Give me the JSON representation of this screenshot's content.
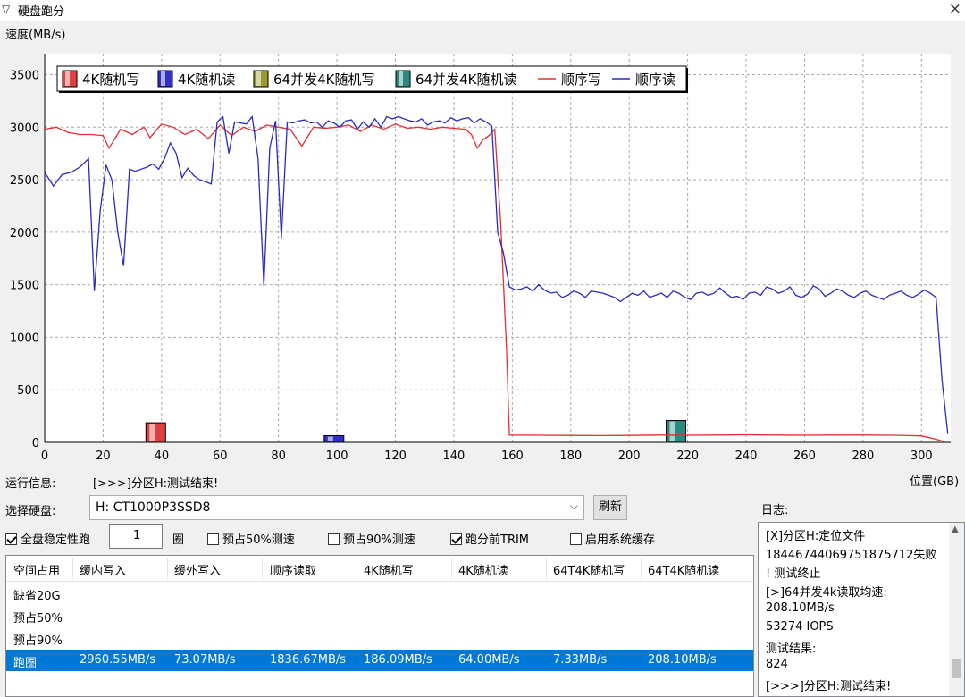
{
  "window": {
    "icon": "app-icon",
    "title": "硬盘跑分",
    "close": "×"
  },
  "chart_unit_label": "速度(MB/s)",
  "chart_data": {
    "type": "line",
    "xlabel": "位置(GB)",
    "ylabel": "速度(MB/s)",
    "xlim": [
      0,
      310
    ],
    "ylim": [
      0,
      3700
    ],
    "xticks": [
      0,
      20,
      40,
      60,
      80,
      100,
      120,
      140,
      160,
      180,
      200,
      220,
      240,
      260,
      280,
      300
    ],
    "yticks": [
      0,
      500,
      1000,
      1500,
      2000,
      2500,
      3000,
      3500
    ],
    "grid": true,
    "legend_position": "top",
    "legend": [
      {
        "name": "4K随机写",
        "kind": "bar",
        "color": "#e04040"
      },
      {
        "name": "4K随机读",
        "kind": "bar",
        "color": "#3030c8"
      },
      {
        "name": "64并发4K随机写",
        "kind": "bar",
        "color": "#9a9a30"
      },
      {
        "name": "64并发4K随机读",
        "kind": "bar",
        "color": "#2a8a80"
      },
      {
        "name": "顺序写",
        "kind": "line",
        "color": "#e03030"
      },
      {
        "name": "顺序读",
        "kind": "line",
        "color": "#2a2ac0"
      }
    ],
    "bars": [
      {
        "series": "4K随机写",
        "x": 38,
        "value": 186.09,
        "color": "#e04040"
      },
      {
        "series": "4K随机读",
        "x": 99,
        "value": 64.0,
        "color": "#3030c8"
      },
      {
        "series": "64并发4K随机写",
        "x": 0,
        "value": 7.33,
        "color": "#9a9a30"
      },
      {
        "series": "64并发4K随机读",
        "x": 216,
        "value": 208.1,
        "color": "#2a8a80"
      }
    ],
    "series": [
      {
        "name": "顺序写",
        "color": "#e03030",
        "points": [
          [
            0,
            2980
          ],
          [
            4,
            3000
          ],
          [
            8,
            2950
          ],
          [
            12,
            2930
          ],
          [
            16,
            2930
          ],
          [
            20,
            2920
          ],
          [
            22,
            2800
          ],
          [
            26,
            2980
          ],
          [
            30,
            2930
          ],
          [
            34,
            3000
          ],
          [
            36,
            2900
          ],
          [
            40,
            3030
          ],
          [
            44,
            3000
          ],
          [
            48,
            2930
          ],
          [
            52,
            2980
          ],
          [
            56,
            2890
          ],
          [
            60,
            3020
          ],
          [
            64,
            2920
          ],
          [
            68,
            3000
          ],
          [
            72,
            2960
          ],
          [
            76,
            3020
          ],
          [
            80,
            3000
          ],
          [
            84,
            2980
          ],
          [
            88,
            2820
          ],
          [
            92,
            3000
          ],
          [
            96,
            2990
          ],
          [
            100,
            3000
          ],
          [
            104,
            3020
          ],
          [
            108,
            2960
          ],
          [
            112,
            3020
          ],
          [
            116,
            2980
          ],
          [
            120,
            3030
          ],
          [
            124,
            2990
          ],
          [
            128,
            3000
          ],
          [
            132,
            2980
          ],
          [
            136,
            3000
          ],
          [
            140,
            2990
          ],
          [
            144,
            2980
          ],
          [
            146,
            2930
          ],
          [
            148,
            2800
          ],
          [
            150,
            2880
          ],
          [
            152,
            2920
          ],
          [
            154,
            2980
          ],
          [
            156,
            2100
          ],
          [
            158,
            900
          ],
          [
            159,
            70
          ],
          [
            170,
            68
          ],
          [
            180,
            66
          ],
          [
            190,
            65
          ],
          [
            200,
            66
          ],
          [
            210,
            70
          ],
          [
            220,
            68
          ],
          [
            230,
            70
          ],
          [
            240,
            72
          ],
          [
            250,
            70
          ],
          [
            260,
            68
          ],
          [
            270,
            70
          ],
          [
            280,
            70
          ],
          [
            290,
            68
          ],
          [
            300,
            62
          ],
          [
            305,
            30
          ],
          [
            308,
            5
          ]
        ]
      },
      {
        "name": "顺序读",
        "color": "#2a2ac0",
        "points": [
          [
            0,
            2570
          ],
          [
            3,
            2440
          ],
          [
            6,
            2550
          ],
          [
            9,
            2570
          ],
          [
            12,
            2620
          ],
          [
            15,
            2700
          ],
          [
            17,
            1440
          ],
          [
            19,
            2200
          ],
          [
            21,
            2640
          ],
          [
            23,
            2500
          ],
          [
            25,
            2000
          ],
          [
            27,
            1680
          ],
          [
            29,
            2600
          ],
          [
            31,
            2580
          ],
          [
            33,
            2600
          ],
          [
            35,
            2620
          ],
          [
            37,
            2650
          ],
          [
            39,
            2600
          ],
          [
            41,
            2700
          ],
          [
            43,
            2850
          ],
          [
            45,
            2750
          ],
          [
            47,
            2520
          ],
          [
            49,
            2610
          ],
          [
            51,
            2540
          ],
          [
            53,
            2500
          ],
          [
            55,
            2480
          ],
          [
            57,
            2460
          ],
          [
            59,
            3050
          ],
          [
            61,
            3100
          ],
          [
            63,
            2750
          ],
          [
            65,
            3050
          ],
          [
            67,
            3040
          ],
          [
            69,
            3030
          ],
          [
            71,
            3100
          ],
          [
            73,
            2700
          ],
          [
            75,
            1490
          ],
          [
            77,
            2800
          ],
          [
            79,
            3060
          ],
          [
            81,
            1940
          ],
          [
            83,
            3050
          ],
          [
            85,
            3040
          ],
          [
            87,
            3060
          ],
          [
            89,
            3070
          ],
          [
            91,
            3040
          ],
          [
            93,
            3050
          ],
          [
            95,
            3000
          ],
          [
            97,
            3060
          ],
          [
            99,
            3040
          ],
          [
            101,
            3000
          ],
          [
            103,
            3060
          ],
          [
            105,
            3070
          ],
          [
            107,
            2980
          ],
          [
            109,
            3050
          ],
          [
            111,
            3000
          ],
          [
            113,
            3080
          ],
          [
            115,
            3000
          ],
          [
            117,
            3100
          ],
          [
            119,
            3080
          ],
          [
            121,
            3100
          ],
          [
            123,
            3080
          ],
          [
            125,
            3060
          ],
          [
            127,
            3050
          ],
          [
            129,
            3080
          ],
          [
            131,
            3020
          ],
          [
            133,
            3050
          ],
          [
            135,
            3060
          ],
          [
            137,
            3040
          ],
          [
            139,
            3090
          ],
          [
            141,
            3060
          ],
          [
            143,
            3080
          ],
          [
            145,
            3090
          ],
          [
            147,
            3040
          ],
          [
            149,
            3080
          ],
          [
            151,
            3050
          ],
          [
            153,
            3010
          ],
          [
            155,
            2000
          ],
          [
            157,
            1800
          ],
          [
            159,
            1480
          ],
          [
            161,
            1450
          ],
          [
            163,
            1460
          ],
          [
            165,
            1480
          ],
          [
            167,
            1440
          ],
          [
            169,
            1500
          ],
          [
            171,
            1450
          ],
          [
            173,
            1420
          ],
          [
            175,
            1430
          ],
          [
            177,
            1380
          ],
          [
            179,
            1400
          ],
          [
            181,
            1440
          ],
          [
            183,
            1420
          ],
          [
            185,
            1380
          ],
          [
            187,
            1440
          ],
          [
            189,
            1430
          ],
          [
            191,
            1420
          ],
          [
            193,
            1400
          ],
          [
            195,
            1380
          ],
          [
            197,
            1340
          ],
          [
            199,
            1380
          ],
          [
            201,
            1420
          ],
          [
            203,
            1400
          ],
          [
            205,
            1440
          ],
          [
            207,
            1380
          ],
          [
            209,
            1400
          ],
          [
            211,
            1420
          ],
          [
            213,
            1380
          ],
          [
            215,
            1440
          ],
          [
            217,
            1420
          ],
          [
            219,
            1380
          ],
          [
            221,
            1360
          ],
          [
            223,
            1420
          ],
          [
            225,
            1430
          ],
          [
            227,
            1400
          ],
          [
            229,
            1420
          ],
          [
            231,
            1470
          ],
          [
            233,
            1420
          ],
          [
            235,
            1380
          ],
          [
            237,
            1390
          ],
          [
            239,
            1360
          ],
          [
            241,
            1420
          ],
          [
            243,
            1430
          ],
          [
            245,
            1400
          ],
          [
            247,
            1480
          ],
          [
            249,
            1460
          ],
          [
            251,
            1420
          ],
          [
            253,
            1440
          ],
          [
            255,
            1480
          ],
          [
            257,
            1400
          ],
          [
            259,
            1380
          ],
          [
            261,
            1410
          ],
          [
            263,
            1490
          ],
          [
            265,
            1460
          ],
          [
            267,
            1390
          ],
          [
            269,
            1420
          ],
          [
            271,
            1460
          ],
          [
            273,
            1440
          ],
          [
            275,
            1400
          ],
          [
            277,
            1380
          ],
          [
            279,
            1420
          ],
          [
            281,
            1440
          ],
          [
            283,
            1400
          ],
          [
            285,
            1380
          ],
          [
            287,
            1360
          ],
          [
            289,
            1400
          ],
          [
            291,
            1420
          ],
          [
            293,
            1440
          ],
          [
            295,
            1400
          ],
          [
            297,
            1380
          ],
          [
            299,
            1410
          ],
          [
            301,
            1450
          ],
          [
            303,
            1420
          ],
          [
            305,
            1380
          ],
          [
            307,
            600
          ],
          [
            309,
            80
          ]
        ]
      }
    ]
  },
  "run_info": {
    "label": "运行信息:",
    "value": "[>>>]分区H:测试结束!"
  },
  "disk_select": {
    "label": "选择硬盘:",
    "value": "H: CT1000P3SSD8",
    "refresh": "刷新"
  },
  "options": {
    "full_stable": {
      "label": "全盘稳定性跑",
      "checked": true
    },
    "rounds_value": "1",
    "rounds_unit": "圈",
    "pre50": {
      "label": "预占50%测速",
      "checked": false
    },
    "pre90": {
      "label": "预占90%测速",
      "checked": false
    },
    "trim": {
      "label": "跑分前TRIM",
      "checked": true
    },
    "cache": {
      "label": "启用系统缓存",
      "checked": false
    }
  },
  "table": {
    "headers": [
      "空间占用",
      "缓内写入",
      "缓外写入",
      "顺序读取",
      "4K随机写",
      "4K随机读",
      "64T4K随机写",
      "64T4K随机读"
    ],
    "rows": [
      [
        "缺省20G",
        "",
        "",
        "",
        "",
        "",
        "",
        ""
      ],
      [
        "预占50%",
        "",
        "",
        "",
        "",
        "",
        "",
        ""
      ],
      [
        "预占90%",
        "",
        "",
        "",
        "",
        "",
        "",
        ""
      ],
      [
        "跑圈",
        "2960.55MB/s",
        "73.07MB/s",
        "1836.67MB/s",
        "186.09MB/s",
        "64.00MB/s",
        "7.33MB/s",
        "208.10MB/s"
      ]
    ]
  },
  "log": {
    "label": "日志:",
    "lines": [
      "[X]分区H:定位文件",
      "18446744069751875712失败",
      "! 测试终止",
      "[>]64并发4k读取均速:",
      "208.10MB/s",
      "53274 IOPS",
      "测试结果:",
      "824",
      "[>>>]分区H:测试结束!"
    ]
  }
}
